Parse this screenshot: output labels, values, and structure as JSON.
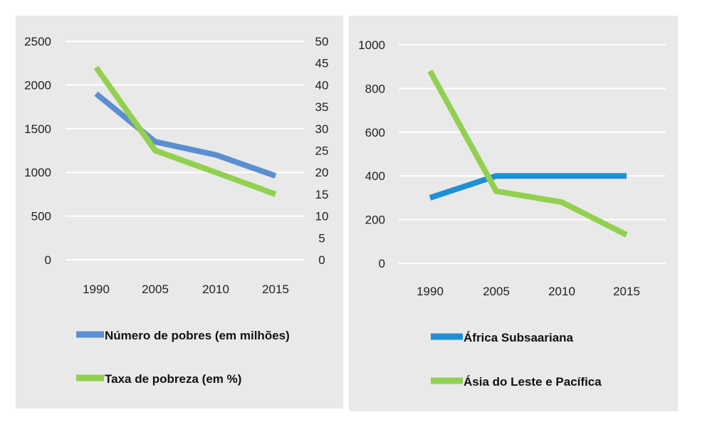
{
  "chart_data": [
    {
      "type": "line",
      "categories": [
        "1990",
        "2005",
        "2010",
        "2015"
      ],
      "series": [
        {
          "name": "Número de pobres (em milhões)",
          "axis": "left",
          "color": "#5b8fd1",
          "values": [
            1900,
            1350,
            1200,
            960
          ]
        },
        {
          "name": "Taxa de pobreza (em %)",
          "axis": "right",
          "color": "#92d050",
          "values": [
            44,
            25,
            20,
            15
          ]
        }
      ],
      "yticks_left": [
        "0",
        "500",
        "1000",
        "1500",
        "2000",
        "2500"
      ],
      "yticks_right": [
        "0",
        "5",
        "10",
        "15",
        "20",
        "25",
        "30",
        "35",
        "40",
        "45",
        "50"
      ],
      "ylim_left": [
        0,
        2500
      ],
      "ylim_right": [
        0,
        50
      ],
      "grid": true,
      "legend": "bottom"
    },
    {
      "type": "line",
      "categories": [
        "1990",
        "2005",
        "2010",
        "2015"
      ],
      "series": [
        {
          "name": "África Subsaariana",
          "color": "#1f8fd6",
          "values": [
            300,
            400,
            400,
            400
          ]
        },
        {
          "name": "Ásia do Leste e Pacífica",
          "color": "#92d050",
          "values": [
            880,
            330,
            280,
            130
          ]
        }
      ],
      "yticks": [
        "0",
        "200",
        "400",
        "600",
        "800",
        "1000"
      ],
      "ylim": [
        0,
        1000
      ],
      "grid": true,
      "legend": "bottom"
    }
  ]
}
